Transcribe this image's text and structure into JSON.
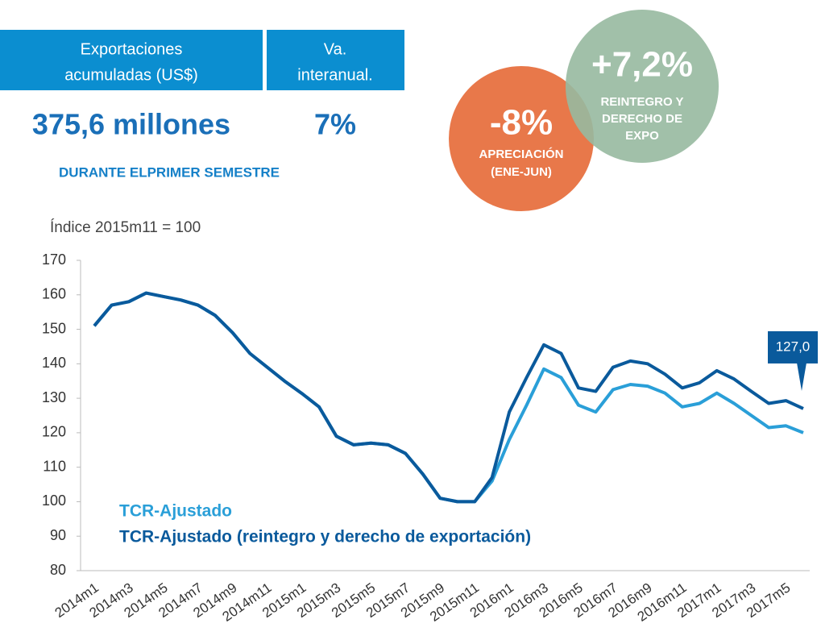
{
  "header": {
    "columns": [
      {
        "lines": [
          "Exportaciones",
          "acumuladas (US$)"
        ],
        "value": "375,6 millones"
      },
      {
        "lines": [
          "Va.",
          "interanual."
        ],
        "value": "7%"
      }
    ],
    "note": "DURANTE ELPRIMER SEMESTRE"
  },
  "circles": [
    {
      "value": "-8%",
      "lines": [
        "APRECIACIÓN",
        "(ENE-JUN)"
      ],
      "color": "#e8784a"
    },
    {
      "value": "+7,2%",
      "lines": [
        "REINTEGRO Y",
        "DERECHO DE",
        "EXPO"
      ],
      "color": "#97b9a0"
    }
  ],
  "chart_data": {
    "type": "line",
    "y_label": "Índice 2015m11 = 100",
    "categories": [
      "2014m1",
      null,
      "2014m3",
      null,
      "2014m5",
      null,
      "2014m7",
      null,
      "2014m9",
      null,
      "2014m11",
      null,
      "2015m1",
      null,
      "2015m3",
      null,
      "2015m5",
      null,
      "2015m7",
      null,
      "2015m9",
      null,
      "2015m11",
      null,
      "2016m1",
      null,
      "2016m3",
      null,
      "2016m5",
      null,
      "2016m7",
      null,
      "2016m9",
      null,
      "2016m11",
      null,
      "2017m1",
      null,
      "2017m3",
      null,
      "2017m5",
      null
    ],
    "series": [
      {
        "name": "TCR-Ajustado",
        "color": "#2a9fd8",
        "values": [
          151,
          157,
          158,
          160.5,
          159.5,
          158.5,
          157,
          154,
          149,
          143,
          139,
          135,
          131.4,
          127.5,
          119,
          116.5,
          117,
          116.5,
          114,
          108,
          101,
          100,
          100,
          106,
          118,
          128,
          138.5,
          136,
          128,
          126,
          132.5,
          134,
          133.5,
          131.5,
          127.5,
          128.5,
          131.5,
          128.5,
          125,
          121.5,
          122,
          120
        ]
      },
      {
        "name": "TCR-Ajustado (reintegro y derecho de exportación)",
        "color": "#0a5a9c",
        "values": [
          151,
          157,
          158,
          160.5,
          159.5,
          158.5,
          157,
          154,
          149,
          143,
          139,
          135,
          131.4,
          127.5,
          119,
          116.5,
          117,
          116.5,
          114,
          108,
          101,
          100,
          100,
          107,
          126,
          136,
          145.5,
          143,
          133,
          132,
          139,
          140.8,
          140,
          137,
          133,
          134.5,
          138,
          135.6,
          132,
          128.5,
          129.3,
          127
        ],
        "value_labels": [
          null,
          null,
          null,
          null,
          null,
          null,
          null,
          null,
          null,
          null,
          null,
          null,
          null,
          null,
          null,
          null,
          null,
          null,
          null,
          null,
          null,
          null,
          null,
          null,
          null,
          null,
          null,
          null,
          null,
          null,
          null,
          null,
          null,
          null,
          null,
          null,
          null,
          null,
          null,
          null,
          null,
          "127,0"
        ]
      }
    ],
    "ylim": [
      80,
      170
    ],
    "yticks": [
      80,
      90,
      100,
      110,
      120,
      130,
      140,
      150,
      160,
      170
    ]
  }
}
